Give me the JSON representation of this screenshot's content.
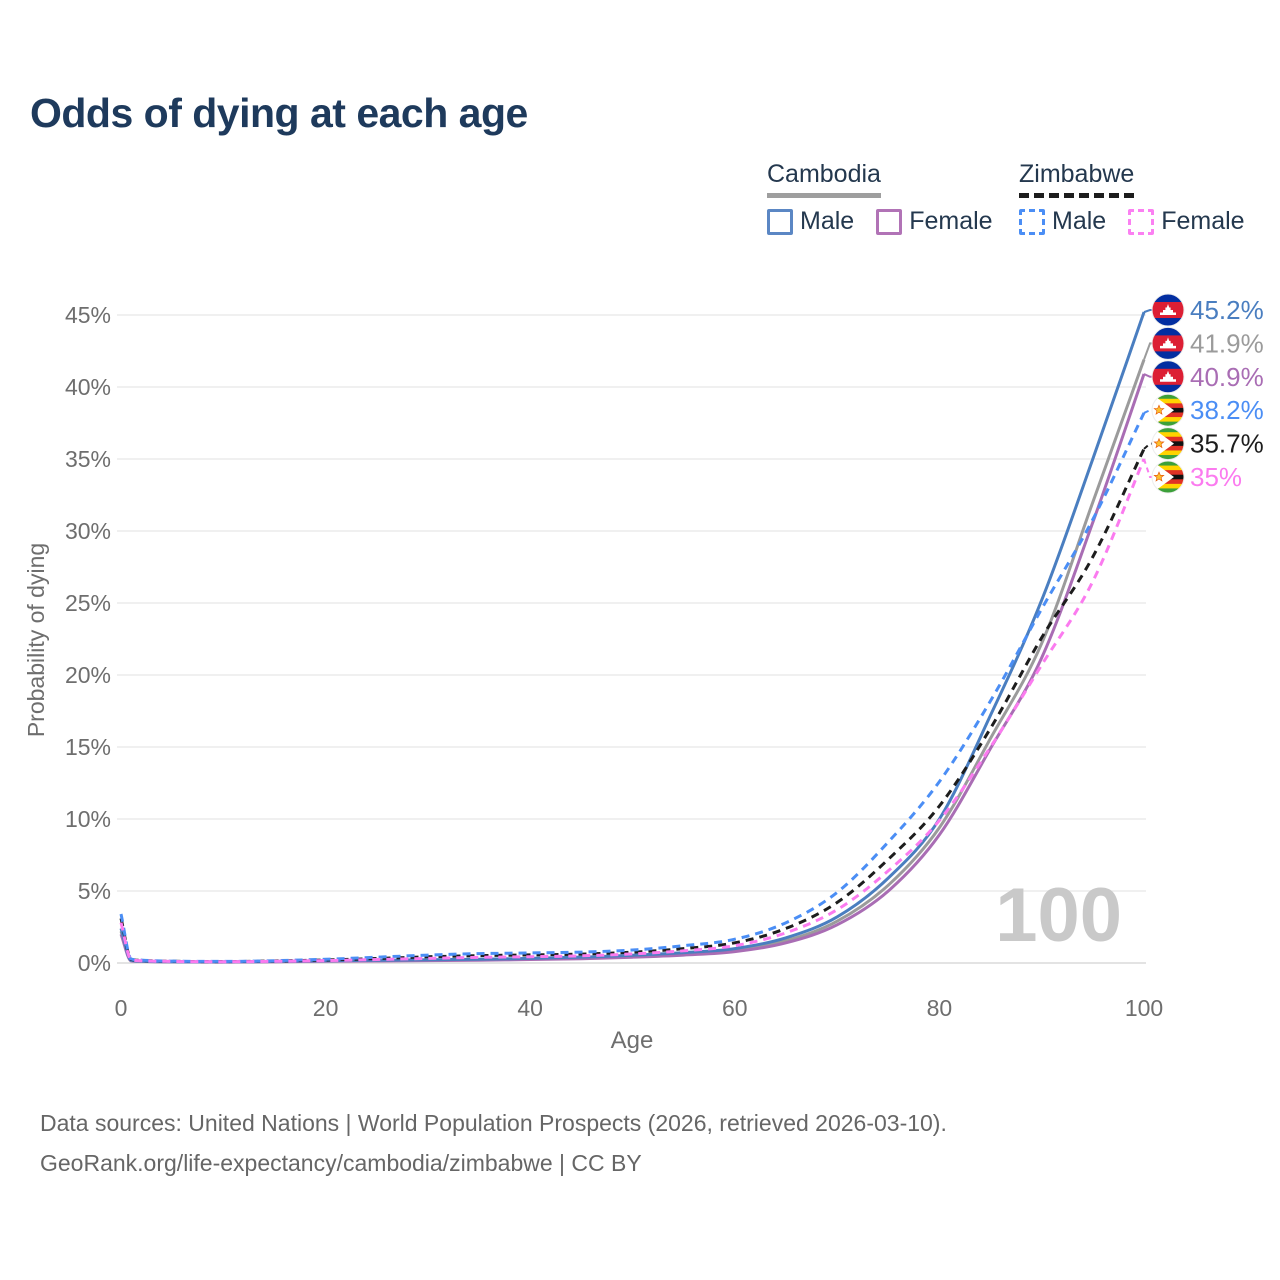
{
  "page": {
    "title": "Odds of dying at each age"
  },
  "legend": {
    "groups": [
      {
        "country": "Cambodia",
        "line_style": "solid",
        "underline_color": "#9e9e9e",
        "items": [
          {
            "label": "Male",
            "color": "#5b87c4",
            "dashed": false
          },
          {
            "label": "Female",
            "color": "#b173b6",
            "dashed": false
          }
        ]
      },
      {
        "country": "Zimbabwe",
        "line_style": "dashed",
        "underline_color": "#1d1d1d",
        "items": [
          {
            "label": "Male",
            "color": "#4b8ef5",
            "dashed": true
          },
          {
            "label": "Female",
            "color": "#fb80f2",
            "dashed": true
          }
        ]
      }
    ]
  },
  "chart_data": {
    "type": "line",
    "title": "Odds of dying at each age",
    "xlabel": "Age",
    "ylabel": "Probability of dying",
    "xlim": [
      0,
      100
    ],
    "ylim_percent": [
      0,
      46
    ],
    "x_ticks": [
      0,
      20,
      40,
      60,
      80,
      100
    ],
    "y_ticks": [
      "0%",
      "5%",
      "10%",
      "15%",
      "20%",
      "25%",
      "30%",
      "35%",
      "40%",
      "45%"
    ],
    "y_tick_values": [
      0,
      5,
      10,
      15,
      20,
      25,
      30,
      35,
      40,
      45
    ],
    "grid": "horizontal",
    "legend_position": "top-right",
    "watermark": "100",
    "x": [
      0,
      1,
      2,
      5,
      10,
      15,
      20,
      25,
      30,
      35,
      40,
      45,
      50,
      55,
      60,
      65,
      70,
      75,
      80,
      85,
      90,
      95,
      100
    ],
    "series": [
      {
        "name": "Cambodia Male",
        "country": "Cambodia",
        "sex": "Male",
        "color": "#4a7ec0",
        "dash": "solid",
        "flag": "kh",
        "end_label": "45.2%",
        "end_value": 45.2,
        "values": [
          2.4,
          0.18,
          0.13,
          0.09,
          0.08,
          0.11,
          0.16,
          0.19,
          0.22,
          0.26,
          0.32,
          0.41,
          0.54,
          0.72,
          1.0,
          1.75,
          3.2,
          5.9,
          10.0,
          17.2,
          25.2,
          35.0,
          45.2
        ]
      },
      {
        "name": "Cambodia Both sexes",
        "country": "Cambodia",
        "sex": "Both",
        "color": "#9b9b9b",
        "dash": "solid",
        "flag": "kh",
        "end_label": "41.9%",
        "end_value": 41.9,
        "values": [
          2.2,
          0.16,
          0.12,
          0.08,
          0.07,
          0.1,
          0.14,
          0.17,
          0.19,
          0.22,
          0.27,
          0.35,
          0.46,
          0.62,
          0.88,
          1.55,
          2.9,
          5.4,
          9.4,
          15.6,
          22.2,
          32.0,
          41.9
        ]
      },
      {
        "name": "Cambodia Female",
        "country": "Cambodia",
        "sex": "Female",
        "color": "#a96db4",
        "dash": "solid",
        "flag": "kh",
        "end_label": "40.9%",
        "end_value": 40.9,
        "values": [
          2.0,
          0.14,
          0.11,
          0.08,
          0.06,
          0.09,
          0.12,
          0.14,
          0.17,
          0.19,
          0.24,
          0.3,
          0.4,
          0.55,
          0.79,
          1.4,
          2.65,
          5.0,
          8.9,
          14.9,
          21.2,
          30.6,
          40.9
        ]
      },
      {
        "name": "Zimbabwe Male",
        "country": "Zimbabwe",
        "sex": "Male",
        "color": "#4b8ef5",
        "dash": "dashed",
        "flag": "zw",
        "end_label": "38.2%",
        "end_value": 38.2,
        "values": [
          3.4,
          0.28,
          0.2,
          0.13,
          0.11,
          0.16,
          0.26,
          0.4,
          0.55,
          0.65,
          0.7,
          0.76,
          0.9,
          1.2,
          1.65,
          2.8,
          4.9,
          8.4,
          12.6,
          18.2,
          24.6,
          30.8,
          38.2
        ]
      },
      {
        "name": "Zimbabwe Both sexes",
        "country": "Zimbabwe",
        "sex": "Both",
        "color": "#1d1d1d",
        "dash": "dashed",
        "flag": "zw",
        "end_label": "35.7%",
        "end_value": 35.7,
        "values": [
          3.1,
          0.25,
          0.18,
          0.12,
          0.1,
          0.14,
          0.21,
          0.31,
          0.43,
          0.51,
          0.56,
          0.62,
          0.75,
          1.0,
          1.4,
          2.4,
          4.2,
          7.2,
          10.9,
          16.3,
          22.6,
          28.2,
          35.7
        ]
      },
      {
        "name": "Zimbabwe Female",
        "country": "Zimbabwe",
        "sex": "Female",
        "color": "#fb7bef",
        "dash": "dashed",
        "flag": "zw",
        "end_label": "35%",
        "end_value": 35.0,
        "values": [
          2.8,
          0.22,
          0.16,
          0.11,
          0.09,
          0.12,
          0.17,
          0.24,
          0.32,
          0.39,
          0.44,
          0.5,
          0.63,
          0.85,
          1.2,
          2.1,
          3.7,
          6.4,
          9.9,
          15.0,
          20.7,
          26.5,
          35.0
        ]
      }
    ]
  },
  "footer": {
    "line1": "Data sources: United Nations | World Population Prospects (2026, retrieved 2026-03-10).",
    "line2": "GeoRank.org/life-expectancy/cambodia/zimbabwe | CC BY"
  },
  "colors": {
    "title": "#1e3a5c",
    "axis_text": "#6e6e6e",
    "gridline": "#ececec",
    "baseline": "#dadada",
    "watermark": "#c9c9c9",
    "footer_text": "#666666"
  }
}
